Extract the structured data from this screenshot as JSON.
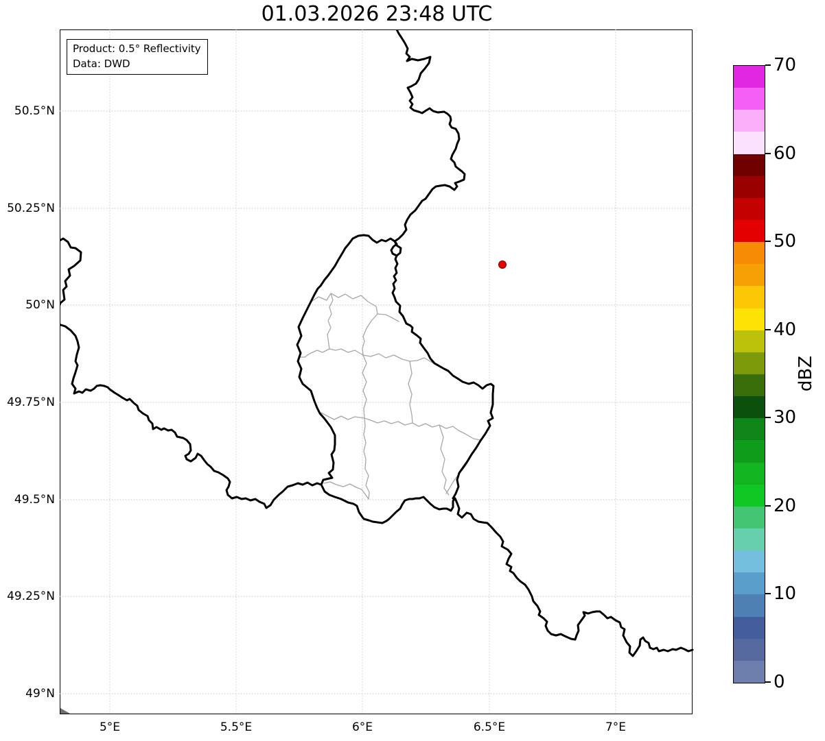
{
  "title": "01.03.2026 23:48 UTC",
  "info_box": {
    "product_line": "Product: 0.5° Reflectivity",
    "data_line": "Data: DWD"
  },
  "axes": {
    "x_tick_labels": [
      "5°E",
      "5.5°E",
      "6°E",
      "6.5°E",
      "7°E"
    ],
    "y_tick_labels": [
      "50.5°N",
      "50.25°N",
      "50°N",
      "49.75°N",
      "49.5°N",
      "49.25°N",
      "49°N"
    ]
  },
  "colorbar": {
    "label": "dBZ",
    "min": 0,
    "max": 70,
    "step_dbz": 2.5,
    "tick_values": [
      70,
      60,
      50,
      40,
      30,
      20,
      10,
      0
    ],
    "colors_top_to_bottom": [
      "#e127e1",
      "#f55ff5",
      "#faaefa",
      "#fce1fc",
      "#700000",
      "#9b0000",
      "#c40000",
      "#e50000",
      "#f78b05",
      "#f7a005",
      "#fcc805",
      "#fce205",
      "#bcc10a",
      "#7c9a0a",
      "#3a6e0a",
      "#0b500d",
      "#108517",
      "#0f9c1b",
      "#12b41f",
      "#0fc723",
      "#44c573",
      "#66cfae",
      "#74bfdd",
      "#5a9fcb",
      "#4f80b5",
      "#445d9c",
      "#56699f",
      "#6e7ead"
    ]
  },
  "map": {
    "marker_color": "#e10600",
    "border_color": "#000000",
    "admin1_color": "#a6a6a6",
    "gridline_color": "#c8c8c8"
  }
}
